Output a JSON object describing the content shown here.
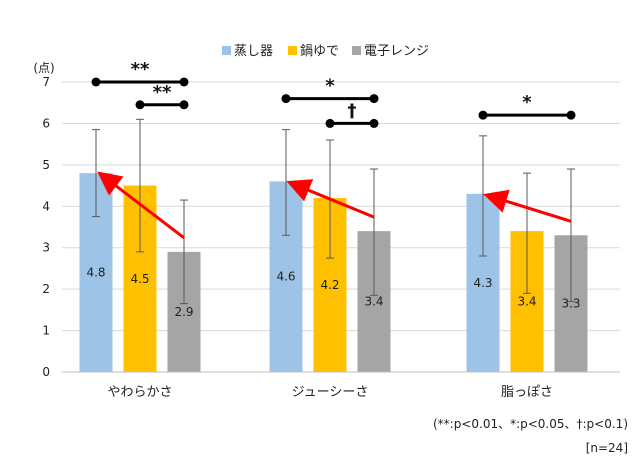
{
  "chart_data": {
    "type": "bar",
    "ylabel": "(点)",
    "ylim": [
      0,
      7
    ],
    "yticks": [
      0,
      1,
      2,
      3,
      4,
      5,
      6,
      7
    ],
    "grid": true,
    "legend_position": "top",
    "categories": [
      "やわらかさ",
      "ジューシーさ",
      "脂っぽさ"
    ],
    "series": [
      {
        "name": "蒸し器",
        "color": "#9dc3e6",
        "values": [
          4.8,
          4.6,
          4.3
        ],
        "labels": [
          "4.8",
          "4.6",
          "4.3"
        ],
        "err_low": [
          3.75,
          3.3,
          2.8
        ],
        "err_high": [
          5.85,
          5.85,
          5.7
        ]
      },
      {
        "name": "鍋ゆで",
        "color": "#ffc000",
        "values": [
          4.5,
          4.2,
          3.4
        ],
        "labels": [
          "4.5",
          "4.2",
          "3.4"
        ],
        "err_low": [
          2.9,
          2.75,
          1.9
        ],
        "err_high": [
          6.1,
          5.6,
          4.8
        ]
      },
      {
        "name": "電子レンジ",
        "color": "#a5a5a5",
        "values": [
          2.9,
          3.4,
          3.3
        ],
        "labels": [
          "2.9",
          "3.4",
          "3.3"
        ],
        "err_low": [
          1.65,
          1.85,
          1.7
        ],
        "err_high": [
          4.15,
          4.9,
          4.9
        ]
      }
    ],
    "significance": [
      {
        "category": 0,
        "from": 0,
        "to": 2,
        "mark": "**",
        "y": 7.0
      },
      {
        "category": 0,
        "from": 1,
        "to": 2,
        "mark": "**",
        "y": 6.45
      },
      {
        "category": 1,
        "from": 0,
        "to": 2,
        "mark": "*",
        "y": 6.6
      },
      {
        "category": 1,
        "from": 1,
        "to": 2,
        "mark": "†",
        "y": 6.0
      },
      {
        "category": 2,
        "from": 0,
        "to": 2,
        "mark": "*",
        "y": 6.2
      }
    ],
    "arrows": [
      {
        "category": 0,
        "from_series": 2,
        "to_series": 0,
        "color": "#ff0000"
      },
      {
        "category": 1,
        "from_series": 2,
        "to_series": 0,
        "color": "#ff0000"
      },
      {
        "category": 2,
        "from_series": 2,
        "to_series": 0,
        "color": "#ff0000"
      }
    ],
    "footnote": "(**:p<0.01、*:p<0.05、†:p<0.1)",
    "sample": "[n=24]"
  }
}
